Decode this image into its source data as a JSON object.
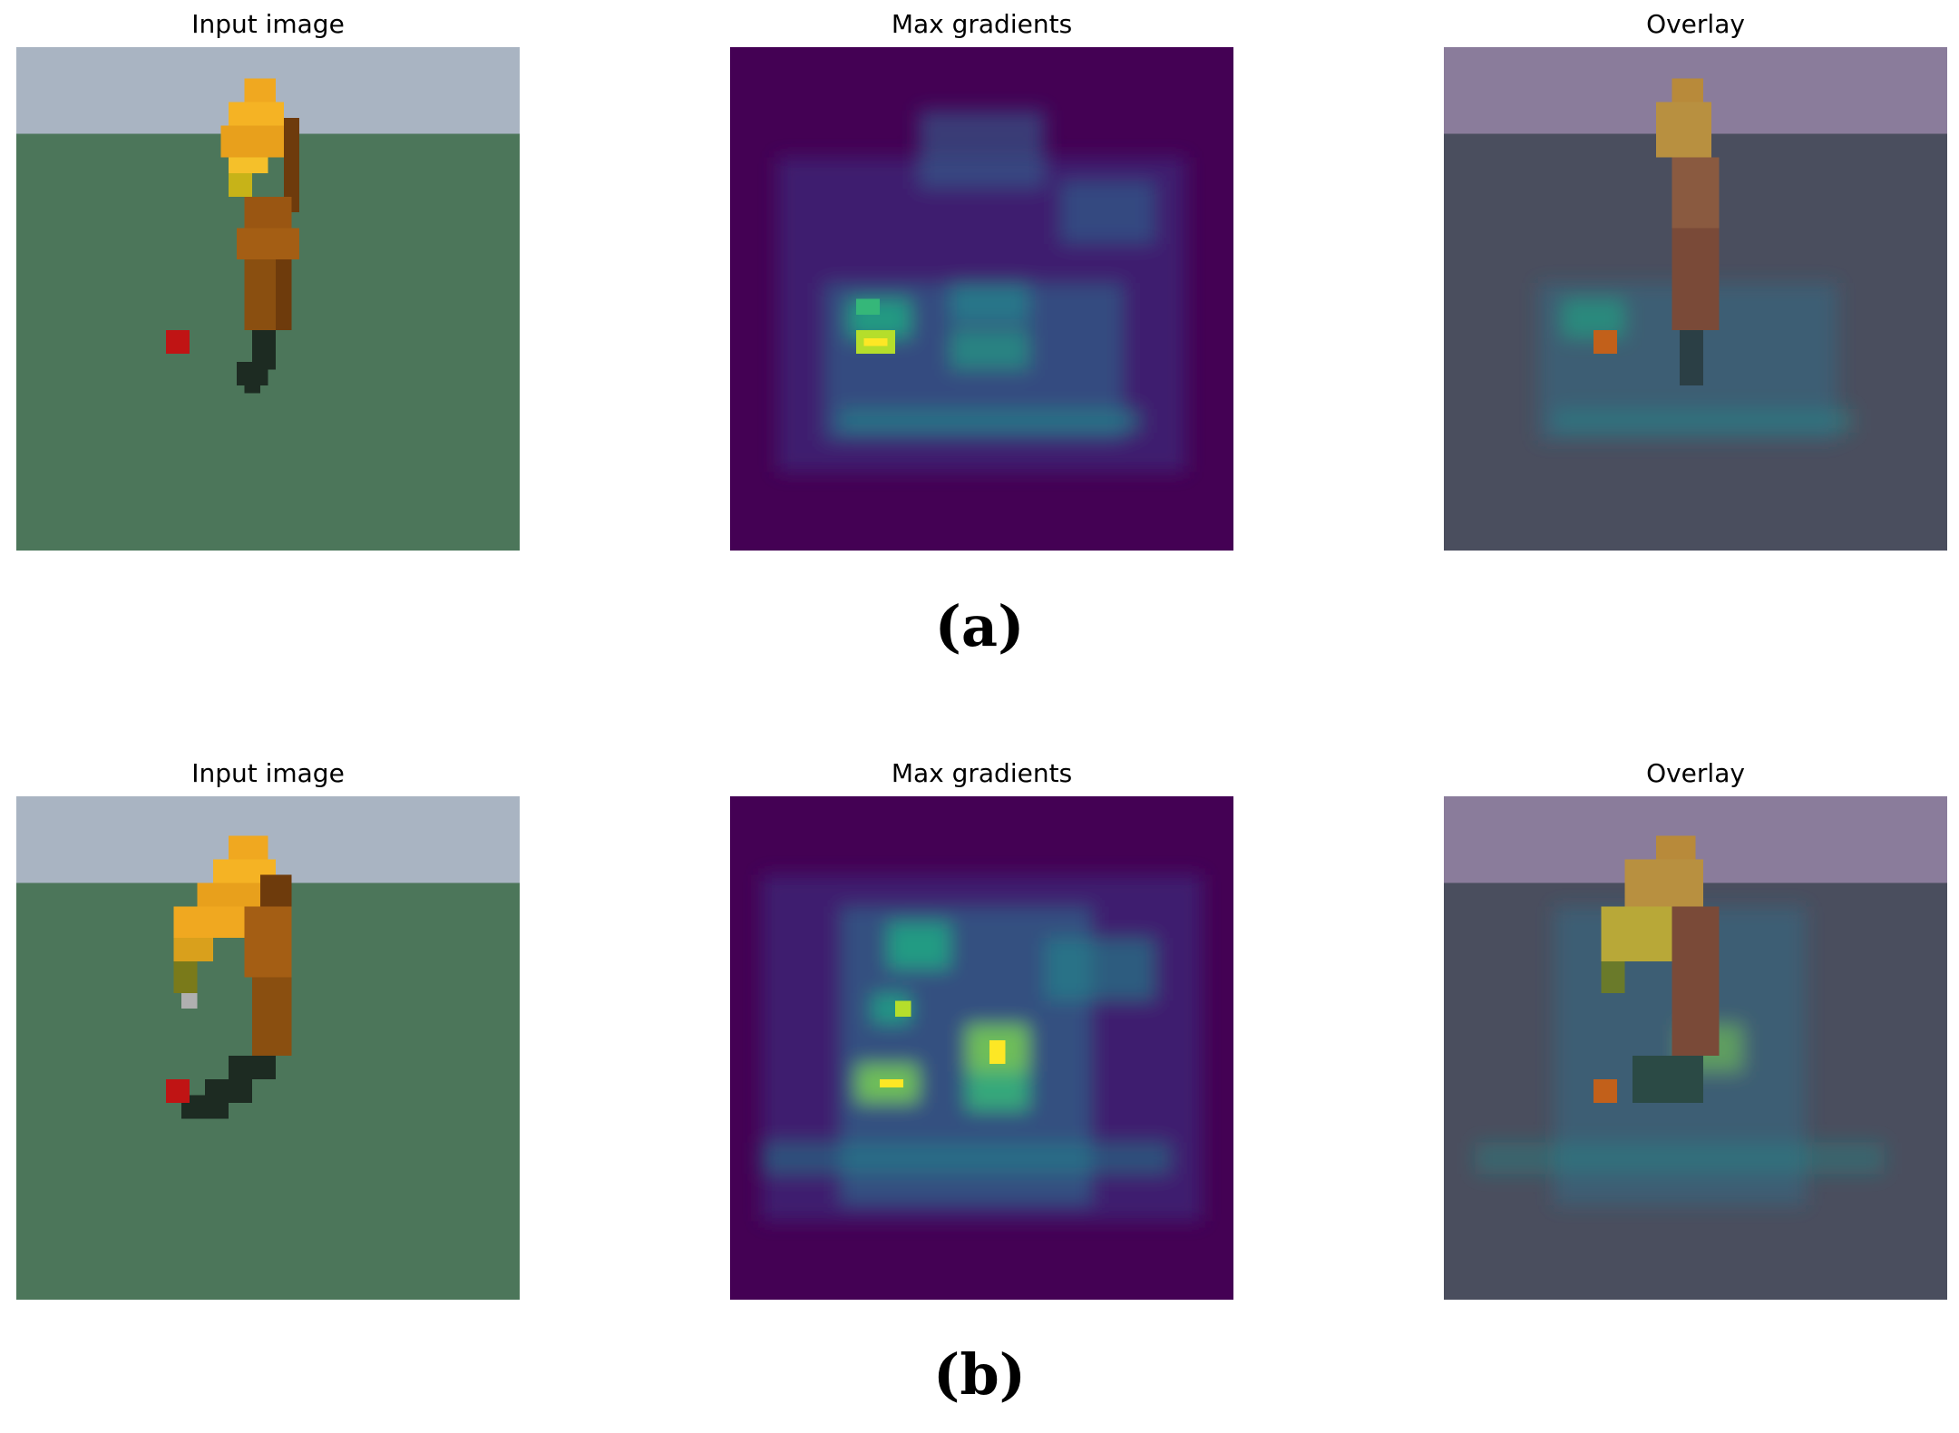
{
  "figure": {
    "rows": [
      {
        "caption": "(a)",
        "panels": [
          {
            "title": "Input image"
          },
          {
            "title": "Max gradients"
          },
          {
            "title": "Overlay"
          }
        ]
      },
      {
        "caption": "(b)",
        "panels": [
          {
            "title": "Input image"
          },
          {
            "title": "Max gradients"
          },
          {
            "title": "Overlay"
          }
        ]
      }
    ]
  },
  "colors": {
    "sky": "#a9b4c2",
    "ground": "#4c765a",
    "robot_light": "#f0a820",
    "robot_dark": "#8a4f10",
    "gripper": "#1d2b22",
    "cube": "#c01414",
    "heatmap_low": "#440154",
    "heatmap_mid": "#21908c",
    "heatmap_high": "#fde725"
  }
}
